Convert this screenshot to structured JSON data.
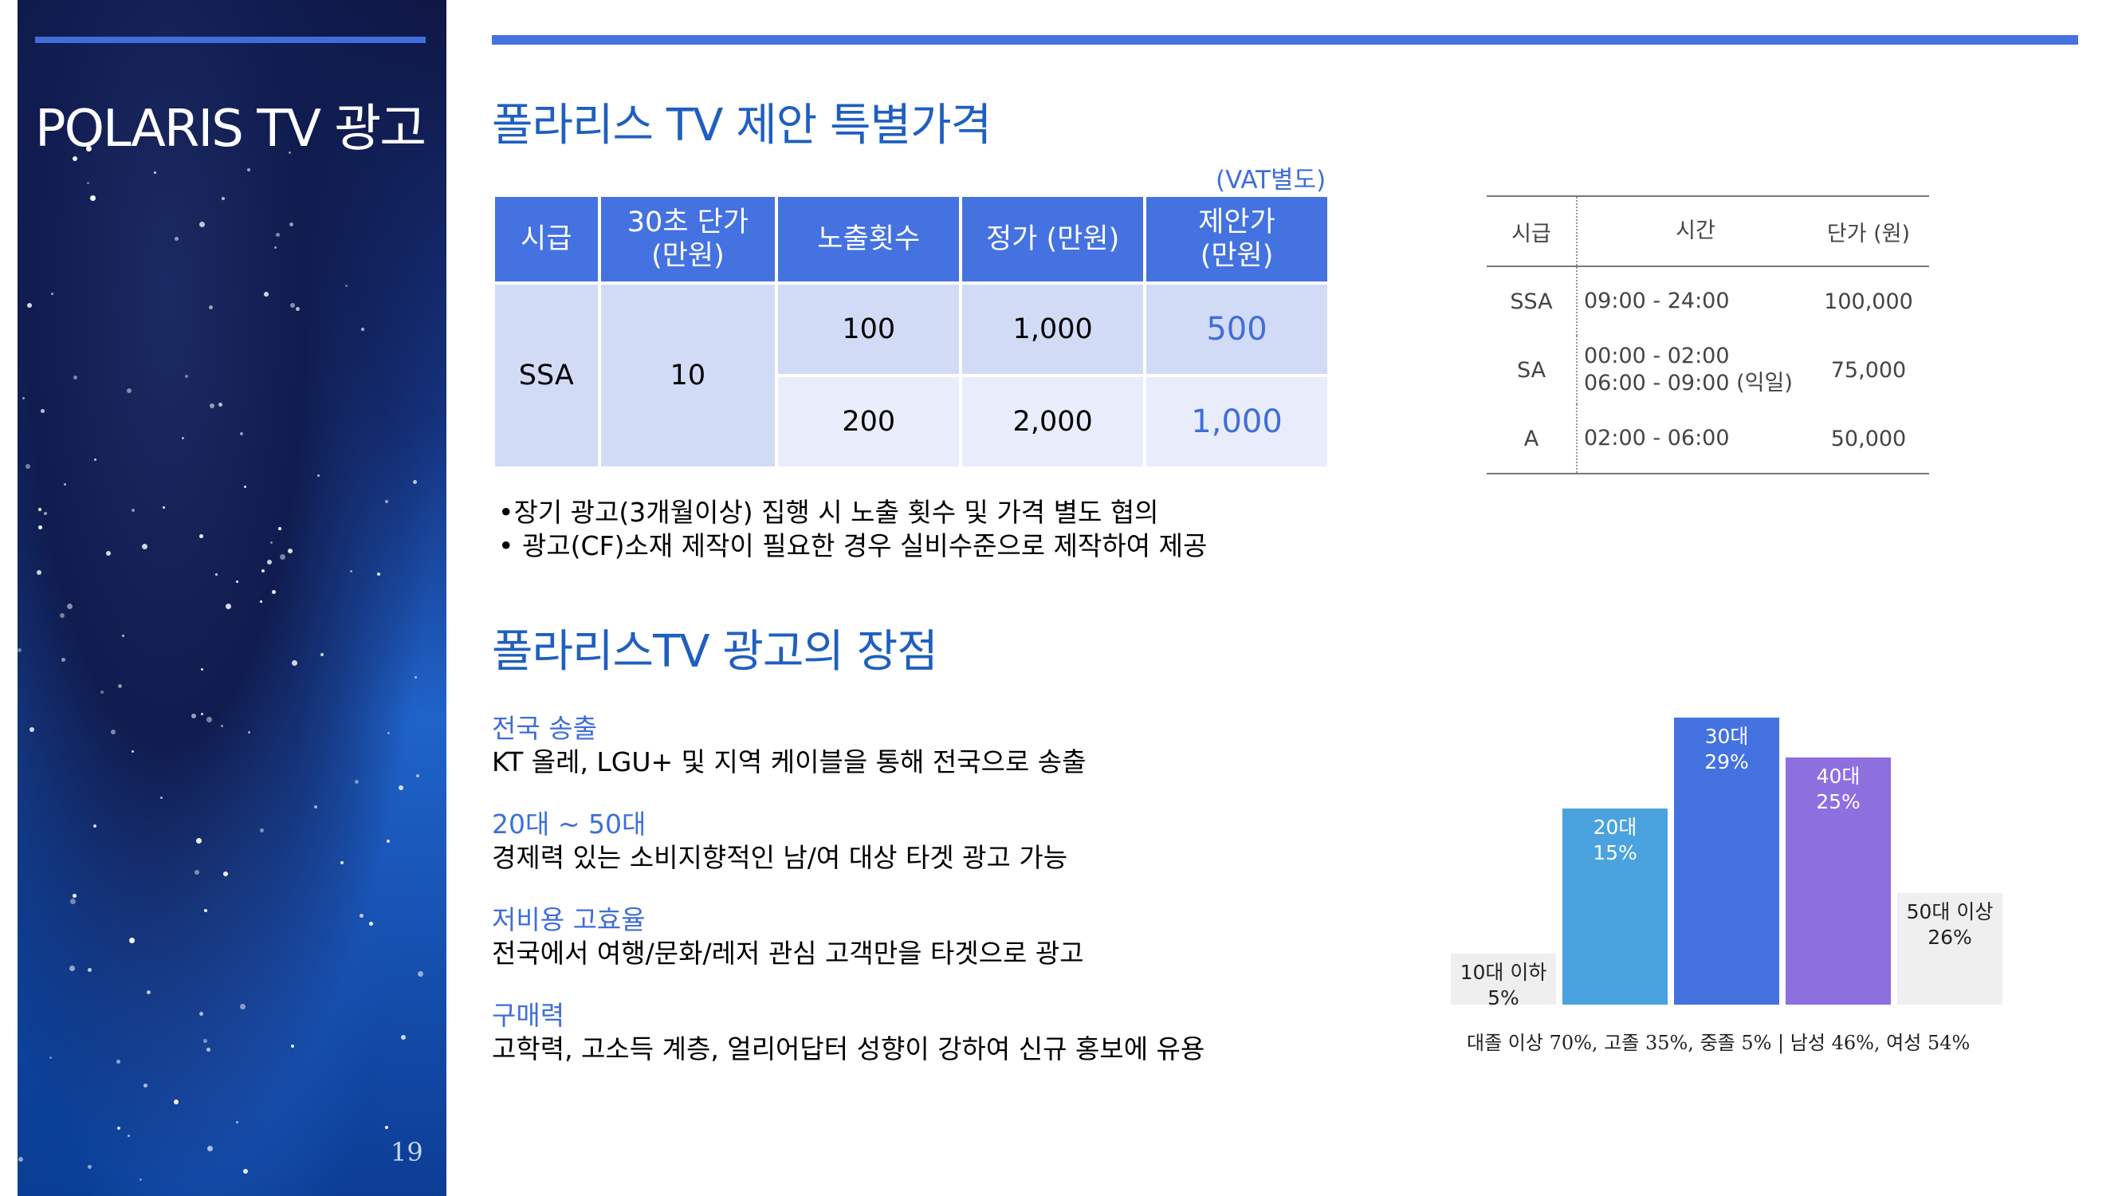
{
  "sidebar": {
    "title": "POLARIS TV 광고",
    "page_number": "19"
  },
  "heading1": "폴라리스 TV 제안 특별가격",
  "vat_note": "(VAT별도)",
  "price_table": {
    "headers": [
      "시급",
      "30초 단가\n(만원)",
      "노출횟수",
      "정가 (만원)",
      "제안가\n(만원)"
    ],
    "grade": "SSA",
    "unit_price": "10",
    "rows": [
      {
        "exposures": "100",
        "list_price": "1,000",
        "offer_price": "500"
      },
      {
        "exposures": "200",
        "list_price": "2,000",
        "offer_price": "1,000"
      }
    ]
  },
  "notes": [
    "•장기 광고(3개월이상) 집행 시 노출 횟수 및 가격 별도 협의",
    "• 광고(CF)소재  제작이 필요한 경우  실비수준으로 제작하여 제공"
  ],
  "time_table": {
    "headers": [
      "시급",
      "시간",
      "단가 (원)"
    ],
    "rows": [
      {
        "grade": "SSA",
        "time": "09:00 - 24:00",
        "price": "100,000"
      },
      {
        "grade": "SA",
        "time": "00:00 - 02:00\n06:00 - 09:00 (익일)",
        "price": "75,000"
      },
      {
        "grade": "A",
        "time": "02:00 - 06:00",
        "price": "50,000"
      }
    ]
  },
  "heading2": "폴라리스TV 광고의 장점",
  "advantages": [
    {
      "title": "전국 송출",
      "desc": "KT 올레, LGU+ 및 지역 케이블을 통해 전국으로 송출"
    },
    {
      "title": "20대 ~ 50대",
      "desc": "경제력 있는 소비지향적인 남/여 대상 타겟 광고 가능"
    },
    {
      "title": "저비용 고효율",
      "desc": "전국에서 여행/문화/레저 관심 고객만을 타겟으로 광고"
    },
    {
      "title": "구매력",
      "desc": "고학력, 고소득 계층, 얼리어답터 성향이 강하여 신규 홍보에 유용"
    }
  ],
  "chart_data": {
    "type": "bar",
    "categories": [
      "10대 이하",
      "20대",
      "30대",
      "40대",
      "50대 이상"
    ],
    "values": [
      5,
      15,
      29,
      25,
      26
    ],
    "value_labels": [
      "5%",
      "15%",
      "29%",
      "25%",
      "26%"
    ],
    "title": "",
    "xlabel": "",
    "ylabel": "",
    "colors": [
      "#efefef",
      "#4aa3df",
      "#4472e0",
      "#8e6fe0",
      "#efefef"
    ],
    "footnote": "대졸 이상 70%, 고졸 35%, 중졸 5%  |  남성 46%, 여성 54%"
  }
}
